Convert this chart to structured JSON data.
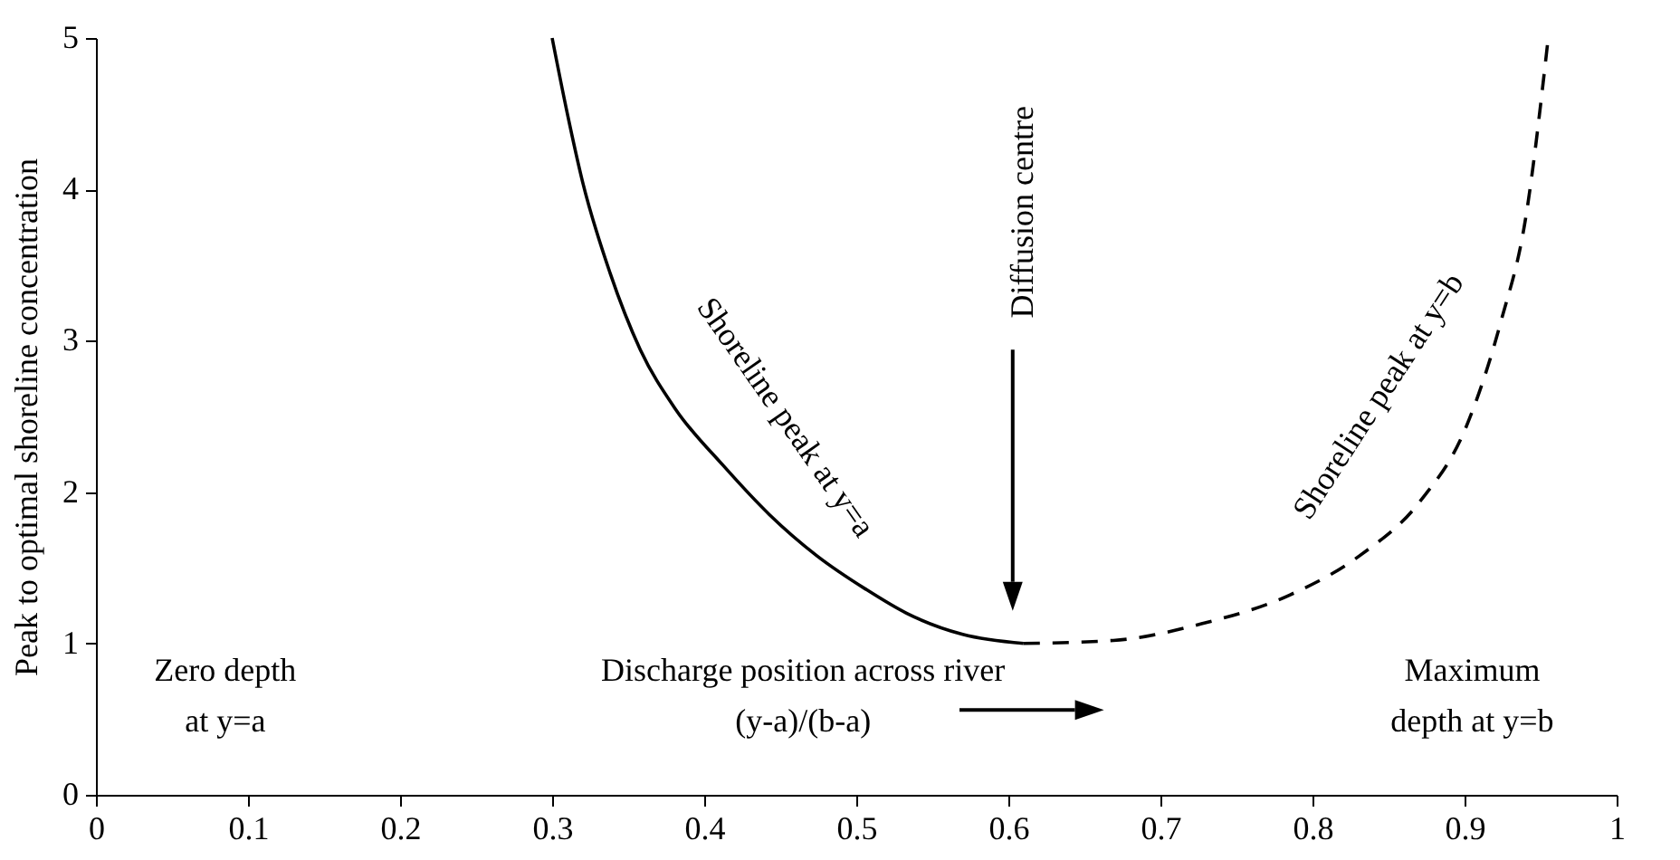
{
  "chart_data": {
    "type": "line",
    "ylabel": "Peak to optimal shoreline concentration",
    "xlim": [
      0,
      1
    ],
    "xticks": [
      0,
      0.1,
      0.2,
      0.3,
      0.4,
      0.5,
      0.6,
      0.7,
      0.8,
      0.9,
      1
    ],
    "ylim": [
      0,
      5
    ],
    "yticks": [
      0,
      1,
      2,
      3,
      4,
      5
    ],
    "grid": false,
    "marker": "none",
    "series": [
      {
        "color": "#000000",
        "line_style": "solid",
        "x": [
          0.3,
          0.31,
          0.32,
          0.338,
          0.358,
          0.381,
          0.413,
          0.443,
          0.474,
          0.506,
          0.533,
          0.57,
          0.61
        ],
        "values": [
          5,
          4.5,
          4.05,
          3.45,
          2.94,
          2.55,
          2.17,
          1.85,
          1.58,
          1.36,
          1.2,
          1.06,
          1.0
        ]
      },
      {
        "color": "#000000",
        "line_style": "dashed",
        "x": [
          0.61,
          0.669,
          0.727,
          0.785,
          0.831,
          0.87,
          0.901,
          0.924,
          0.94,
          0.955
        ],
        "values": [
          1.0,
          1.02,
          1.13,
          1.32,
          1.58,
          1.93,
          2.43,
          3.13,
          3.8,
          5
        ]
      }
    ],
    "annotations": [
      "Shoreline peak at y=a",
      "Shoreline peak at y=b",
      "Diffusion centre",
      "Zero depth\nat y=a",
      "Discharge position across river\n(y-a)/(b-a)",
      "Maximum\ndepth at y=b"
    ]
  }
}
